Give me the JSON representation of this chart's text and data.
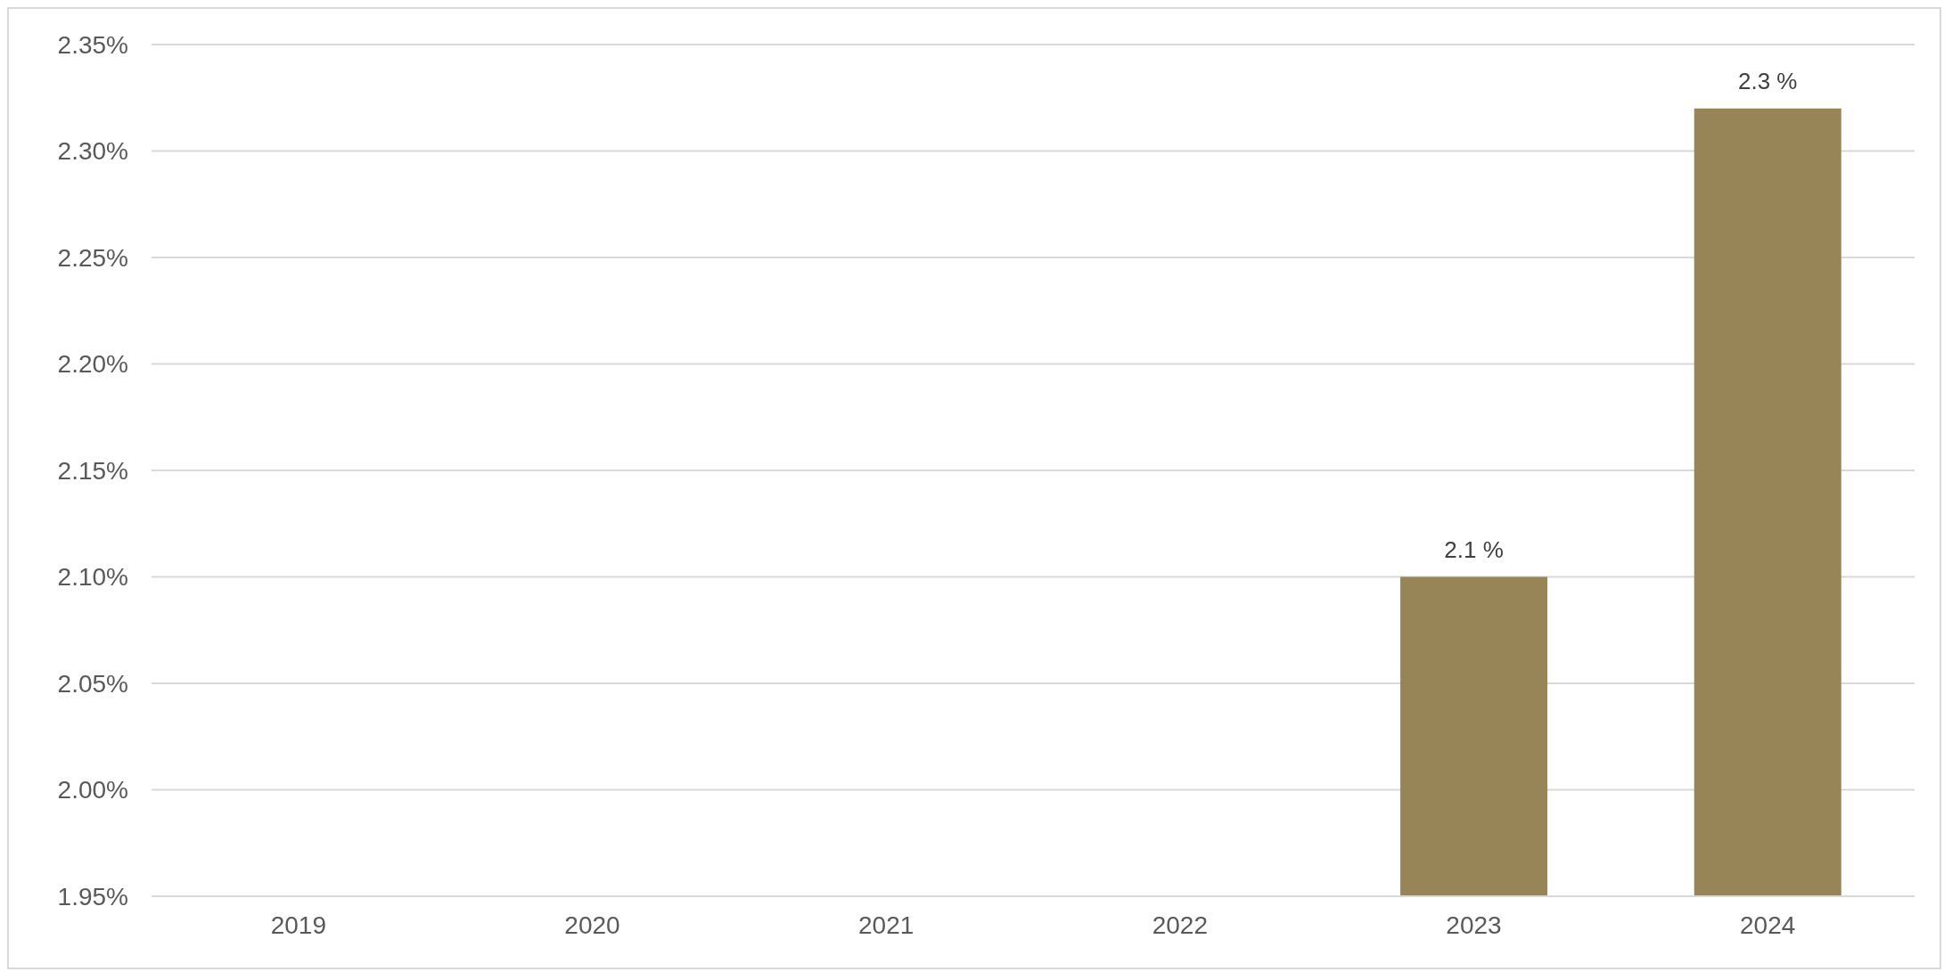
{
  "chart_data": {
    "type": "bar",
    "categories": [
      "2019",
      "2020",
      "2021",
      "2022",
      "2023",
      "2024"
    ],
    "values": [
      null,
      null,
      null,
      null,
      2.1,
      2.32
    ],
    "value_labels": [
      null,
      null,
      null,
      null,
      "2.1 %",
      "2.3 %"
    ],
    "color": "#978558",
    "ylim": [
      1.95,
      2.35
    ],
    "yticks": [
      {
        "value": 1.95,
        "label": "1.95%"
      },
      {
        "value": 2.0,
        "label": "2.00%"
      },
      {
        "value": 2.05,
        "label": "2.05%"
      },
      {
        "value": 2.1,
        "label": "2.10%"
      },
      {
        "value": 2.15,
        "label": "2.15%"
      },
      {
        "value": 2.2,
        "label": "2.20%"
      },
      {
        "value": 2.25,
        "label": "2.25%"
      },
      {
        "value": 2.3,
        "label": "2.30%"
      },
      {
        "value": 2.35,
        "label": "2.35%"
      }
    ],
    "grid": "y",
    "legend": false
  }
}
